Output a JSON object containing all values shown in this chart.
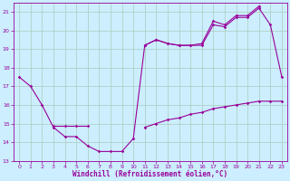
{
  "xlabel": "Windchill (Refroidissement éolien,°C)",
  "background_color": "#cceeff",
  "grid_color": "#aaccbb",
  "line_color": "#990099",
  "series1": {
    "x": [
      0,
      1,
      2,
      3,
      4,
      5,
      6,
      7,
      8,
      9,
      10,
      11,
      12,
      13,
      14,
      15,
      16,
      17,
      18,
      19,
      20,
      21,
      22,
      23
    ],
    "y": [
      17.5,
      17.0,
      16.0,
      14.8,
      14.3,
      14.3,
      13.8,
      13.5,
      13.5,
      13.5,
      14.2,
      19.2,
      19.5,
      19.3,
      19.2,
      19.2,
      19.2,
      20.3,
      20.2,
      20.7,
      20.7,
      21.2,
      20.3,
      17.5
    ]
  },
  "series2": {
    "x": [
      3,
      4,
      5,
      6
    ],
    "y": [
      14.9,
      14.9,
      14.9,
      14.9
    ]
  },
  "series3": {
    "x": [
      11,
      12,
      13,
      14,
      15,
      16,
      17,
      18,
      19,
      20,
      21,
      22,
      23
    ],
    "y": [
      14.8,
      15.0,
      15.2,
      15.3,
      15.5,
      15.6,
      15.8,
      15.9,
      16.0,
      16.1,
      16.2,
      16.2,
      16.2
    ]
  },
  "series4": {
    "x": [
      11,
      12,
      13,
      14,
      15,
      16,
      17,
      18,
      19,
      20,
      21
    ],
    "y": [
      19.2,
      19.5,
      19.3,
      19.2,
      19.2,
      19.3,
      20.5,
      20.3,
      20.8,
      20.8,
      21.3
    ]
  },
  "ylim": [
    13,
    21.5
  ],
  "xlim": [
    -0.5,
    23.5
  ],
  "yticks": [
    13,
    14,
    15,
    16,
    17,
    18,
    19,
    20,
    21
  ],
  "xticks": [
    0,
    1,
    2,
    3,
    4,
    5,
    6,
    7,
    8,
    9,
    10,
    11,
    12,
    13,
    14,
    15,
    16,
    17,
    18,
    19,
    20,
    21,
    22,
    23
  ]
}
